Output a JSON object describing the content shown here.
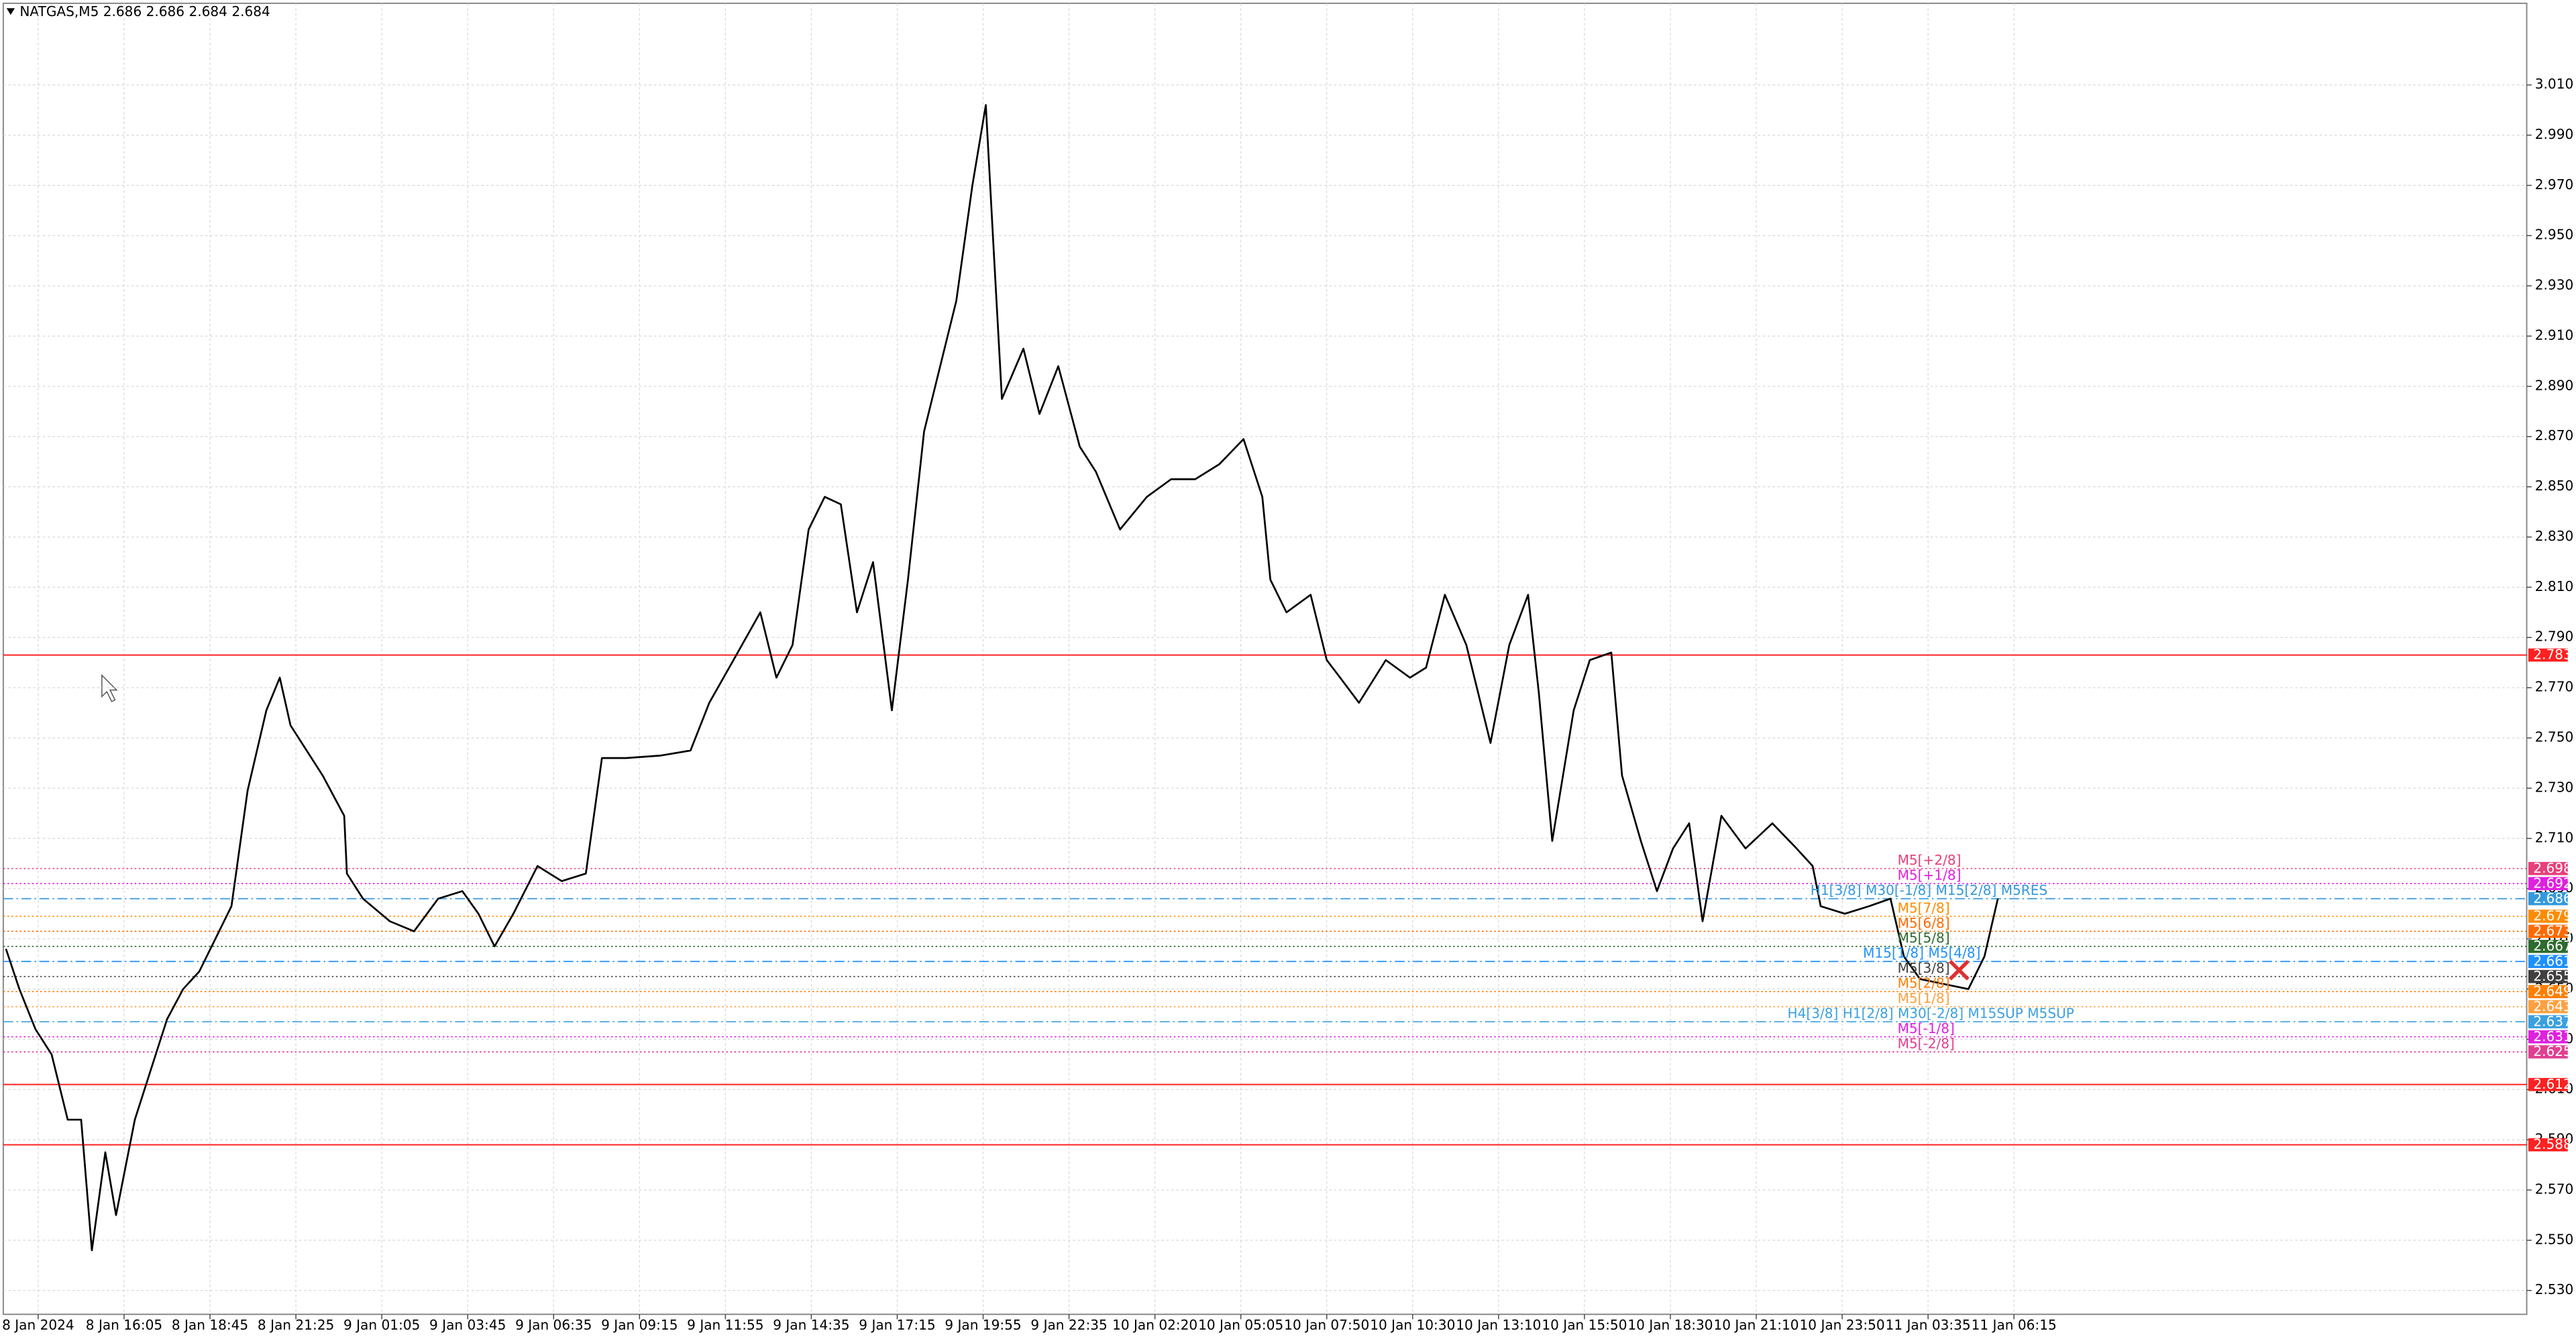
{
  "chart_data": {
    "type": "line",
    "title": "NATGAS,M5  2.686 2.686 2.684 2.684",
    "x": [
      -12,
      -7,
      -1,
      5,
      11,
      16,
      20,
      25,
      29,
      36,
      42,
      48,
      54,
      60,
      66,
      72,
      78,
      85,
      90,
      94,
      100,
      106,
      114,
      115,
      121,
      131,
      140,
      149,
      158,
      164,
      170,
      177,
      186,
      195,
      204,
      210,
      219,
      232,
      243,
      250,
      259,
      269,
      275,
      281,
      287,
      293,
      299,
      305,
      311,
      318,
      324,
      330,
      336,
      342,
      348,
      353,
      356,
      359,
      367,
      373,
      380,
      388,
      394,
      403,
      413,
      422,
      431,
      440,
      449,
      456,
      459,
      465,
      474,
      480,
      485,
      492,
      502,
      511,
      517,
      524,
      532,
      541,
      548,
      555,
      559,
      564,
      572,
      578,
      586,
      590,
      597,
      603,
      609,
      615,
      620,
      627,
      636,
      646,
      655,
      661,
      664,
      673,
      682,
      690,
      695,
      701,
      710,
      719,
      725,
      730
    ],
    "series": [
      {
        "color": "#000000",
        "values": [
          2.666,
          2.65,
          2.634,
          2.624,
          2.598,
          2.598,
          2.546,
          2.585,
          2.56,
          2.598,
          2.618,
          2.638,
          2.65,
          2.657,
          2.67,
          2.683,
          2.729,
          2.761,
          2.774,
          2.755,
          2.745,
          2.735,
          2.719,
          2.696,
          2.686,
          2.677,
          2.673,
          2.686,
          2.689,
          2.68,
          2.667,
          2.68,
          2.699,
          2.693,
          2.696,
          2.742,
          2.742,
          2.743,
          2.745,
          2.764,
          2.781,
          2.8,
          2.774,
          2.787,
          2.833,
          2.846,
          2.843,
          2.8,
          2.82,
          2.761,
          2.813,
          2.872,
          2.898,
          2.924,
          2.97,
          3.002,
          2.943,
          2.885,
          2.905,
          2.879,
          2.898,
          2.866,
          2.856,
          2.833,
          2.846,
          2.853,
          2.853,
          2.859,
          2.869,
          2.846,
          2.813,
          2.8,
          2.807,
          2.781,
          2.774,
          2.764,
          2.781,
          2.774,
          2.778,
          2.807,
          2.787,
          2.748,
          2.787,
          2.807,
          2.768,
          2.709,
          2.761,
          2.781,
          2.784,
          2.735,
          2.709,
          2.689,
          2.706,
          2.716,
          2.677,
          2.719,
          2.706,
          2.716,
          2.706,
          2.699,
          2.683,
          2.68,
          2.683,
          2.686,
          2.663,
          2.654,
          2.652,
          2.65,
          2.663,
          2.686
        ]
      }
    ],
    "xlim": [
      -13,
      927
    ],
    "xticks": [
      {
        "value": 0,
        "label": "8 Jan 2024"
      },
      {
        "value": 32,
        "label": "8 Jan 16:05"
      },
      {
        "value": 64,
        "label": "8 Jan 18:45"
      },
      {
        "value": 96,
        "label": "8 Jan 21:25"
      },
      {
        "value": 128,
        "label": "9 Jan 01:05"
      },
      {
        "value": 160,
        "label": "9 Jan 03:45"
      },
      {
        "value": 192,
        "label": "9 Jan 06:35"
      },
      {
        "value": 224,
        "label": "9 Jan 09:15"
      },
      {
        "value": 256,
        "label": "9 Jan 11:55"
      },
      {
        "value": 288,
        "label": "9 Jan 14:35"
      },
      {
        "value": 320,
        "label": "9 Jan 17:15"
      },
      {
        "value": 352,
        "label": "9 Jan 19:55"
      },
      {
        "value": 384,
        "label": "9 Jan 22:35"
      },
      {
        "value": 416,
        "label": "10 Jan 02:20"
      },
      {
        "value": 448,
        "label": "10 Jan 05:05"
      },
      {
        "value": 480,
        "label": "10 Jan 07:50"
      },
      {
        "value": 512,
        "label": "10 Jan 10:30"
      },
      {
        "value": 544,
        "label": "10 Jan 13:10"
      },
      {
        "value": 576,
        "label": "10 Jan 15:50"
      },
      {
        "value": 608,
        "label": "10 Jan 18:30"
      },
      {
        "value": 640,
        "label": "10 Jan 21:10"
      },
      {
        "value": 672,
        "label": "10 Jan 23:50"
      },
      {
        "value": 704,
        "label": "11 Jan 03:35"
      },
      {
        "value": 736,
        "label": "11 Jan 06:15"
      }
    ],
    "ylim": [
      2.5205,
      3.0425
    ],
    "yticks": [
      {
        "value": 2.53,
        "label": "2.530"
      },
      {
        "value": 2.55,
        "label": "2.550"
      },
      {
        "value": 2.57,
        "label": "2.570"
      },
      {
        "value": 2.59,
        "label": "2.590"
      },
      {
        "value": 2.61,
        "label": "2.610"
      },
      {
        "value": 2.63,
        "label": "2.630"
      },
      {
        "value": 2.65,
        "label": "2.650"
      },
      {
        "value": 2.67,
        "label": "2.670"
      },
      {
        "value": 2.69,
        "label": "2.690"
      },
      {
        "value": 2.71,
        "label": "2.710"
      },
      {
        "value": 2.73,
        "label": "2.730"
      },
      {
        "value": 2.75,
        "label": "2.750"
      },
      {
        "value": 2.77,
        "label": "2.770"
      },
      {
        "value": 2.79,
        "label": "2.790"
      },
      {
        "value": 2.81,
        "label": "2.810"
      },
      {
        "value": 2.83,
        "label": "2.830"
      },
      {
        "value": 2.85,
        "label": "2.850"
      },
      {
        "value": 2.87,
        "label": "2.870"
      },
      {
        "value": 2.89,
        "label": "2.890"
      },
      {
        "value": 2.91,
        "label": "2.910"
      },
      {
        "value": 2.93,
        "label": "2.930"
      },
      {
        "value": 2.95,
        "label": "2.950"
      },
      {
        "value": 2.97,
        "label": "2.970"
      },
      {
        "value": 2.99,
        "label": "2.990"
      },
      {
        "value": 3.01,
        "label": "3.010"
      }
    ],
    "grid": true,
    "levels": [
      {
        "value": 2.783,
        "color": "#ff2020",
        "style": "solid"
      },
      {
        "value": 2.698,
        "color": "#e8407a",
        "style": "dot",
        "label": "M5[+2/8]"
      },
      {
        "value": 2.692,
        "color": "#e020e0",
        "style": "dot",
        "label": "M5[+1/8]"
      },
      {
        "value": 2.686,
        "color": "#3399dd",
        "style": "dashdot",
        "label": "H1[3/8] M30[-1/8] M15[2/8] M5RES"
      },
      {
        "value": 2.679,
        "color": "#ff8c00",
        "style": "dot",
        "label": "M5[7/8]"
      },
      {
        "value": 2.673,
        "color": "#ff6a00",
        "style": "dot",
        "label": "M5[6/8]"
      },
      {
        "value": 2.667,
        "color": "#2e6b2e",
        "style": "dot",
        "label": "M5[5/8]"
      },
      {
        "value": 2.661,
        "color": "#1e90ff",
        "style": "dashdot",
        "label": "M15[1/8] M5[4/8]"
      },
      {
        "value": 2.655,
        "color": "#404040",
        "style": "dot",
        "label": "M5[3/8]"
      },
      {
        "value": 2.649,
        "color": "#ff7f00",
        "style": "dot",
        "label": "M5[2/8]"
      },
      {
        "value": 2.643,
        "color": "#ffa040",
        "style": "dot",
        "label": "M5[1/8]"
      },
      {
        "value": 2.637,
        "color": "#3aa0e0",
        "style": "dashdot",
        "label": "H4[3/8] H1[2/8] M30[-2/8] M15SUP M5SUP"
      },
      {
        "value": 2.631,
        "color": "#e020e0",
        "style": "dot",
        "label": "M5[-1/8]"
      },
      {
        "value": 2.625,
        "color": "#e0408f",
        "style": "dot",
        "label": "M5[-2/8]"
      },
      {
        "value": 2.612,
        "color": "#ff2020",
        "style": "solid"
      },
      {
        "value": 2.588,
        "color": "#ff2020",
        "style": "solid"
      }
    ]
  }
}
